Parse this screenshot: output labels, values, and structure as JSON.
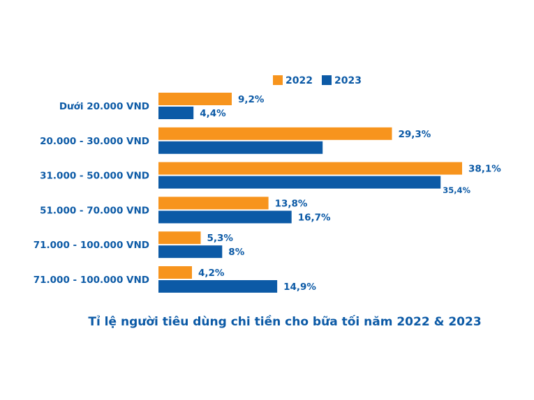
{
  "colors": {
    "series_2022": "#f7941d",
    "series_2023": "#0c5aa6",
    "label_text": "#0c5aa6",
    "background": "#ffffff"
  },
  "chart_data": {
    "type": "bar",
    "orientation": "horizontal",
    "title": "Tỉ lệ người tiêu dùng chi tiền cho bữa tối năm 2022 & 2023",
    "xlabel": "",
    "ylabel": "",
    "xlim": [
      0,
      38.1
    ],
    "grid": false,
    "legend_position": "top-right",
    "categories": [
      "Dưới 20.000 VND",
      "20.000 - 30.000 VND",
      "31.000 - 50.000 VND",
      "51.000 - 70.000 VND",
      "71.000 - 100.000 VND",
      "71.000 - 100.000 VND"
    ],
    "series": [
      {
        "name": "2022",
        "values": [
          9.2,
          29.3,
          38.1,
          13.8,
          5.3,
          4.2
        ],
        "labels": [
          "9,2%",
          "29,3%",
          "38,1%",
          "13,8%",
          "5,3%",
          "4,2%"
        ]
      },
      {
        "name": "2023",
        "values": [
          4.4,
          20.6,
          35.4,
          16.7,
          8,
          14.9
        ],
        "labels": [
          "4,4%",
          "",
          "35,4%",
          "16,7%",
          "8%",
          "14,9%"
        ]
      }
    ]
  }
}
